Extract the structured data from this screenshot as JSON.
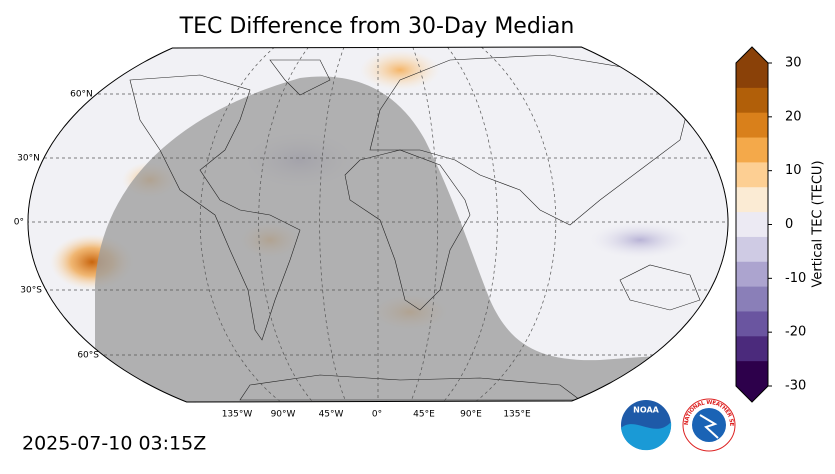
{
  "title": "TEC Difference from 30-Day Median",
  "map": {
    "lat_labels": [
      "60°N",
      "30°N",
      "0°",
      "30°S",
      "60°S"
    ],
    "lon_labels": [
      "135°W",
      "90°W",
      "45°W",
      "0°",
      "45°E",
      "90°E",
      "135°E"
    ]
  },
  "colorbar": {
    "label": "Vertical TEC (TECU)",
    "lim": [
      -30,
      30
    ],
    "ticks": [
      30,
      20,
      10,
      0,
      -10,
      -20,
      -30
    ],
    "colors": [
      "#2d004b",
      "#4b2a7c",
      "#6a55a0",
      "#8a7fb8",
      "#aca4cf",
      "#cfcbe4",
      "#eceaf3",
      "#fbebd4",
      "#fdcf93",
      "#f4a94a",
      "#d9801b",
      "#b15f09",
      "#8a4108"
    ]
  },
  "timestamp": "2025-07-10 03:15Z",
  "logos": {
    "noaa": "NOAA",
    "nws": "NATIONAL WEATHER SERVICE"
  }
}
